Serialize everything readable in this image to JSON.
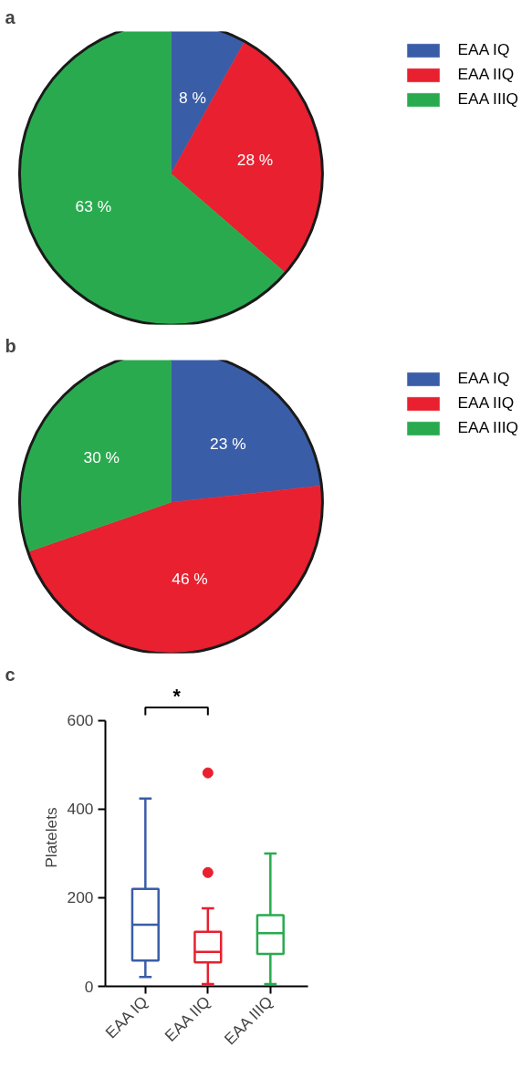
{
  "chart_data": [
    {
      "type": "pie",
      "title": "a",
      "categories": [
        "EAA IQ",
        "EAA IIQ",
        "EAA IIIQ"
      ],
      "values": [
        8,
        28,
        63
      ],
      "colors": [
        "#3a5da8",
        "#e8202f",
        "#2aaa4f"
      ],
      "value_labels": [
        "8 %",
        "28 %",
        "63 %"
      ],
      "legend": "top right"
    },
    {
      "type": "pie",
      "title": "b",
      "categories": [
        "EAA IQ",
        "EAA IIQ",
        "EAA IIIQ"
      ],
      "values": [
        23,
        46,
        30
      ],
      "colors": [
        "#3a5da8",
        "#e8202f",
        "#2aaa4f"
      ],
      "value_labels": [
        "23 %",
        "46 %",
        "30 %"
      ],
      "legend": "top right"
    },
    {
      "type": "box",
      "title": "c",
      "ylabel": "Platelets",
      "categories": [
        "EAA IQ",
        "EAA IIQ",
        "EAA IIIQ"
      ],
      "colors": [
        "#3a5da8",
        "#e8202f",
        "#2aaa4f"
      ],
      "ylim": [
        0,
        600
      ],
      "yticks": [
        0,
        200,
        400,
        600
      ],
      "grid": false,
      "annotations": [
        "*"
      ],
      "boxes": [
        {
          "low": 21,
          "q1": 58,
          "median": 139,
          "q3": 220,
          "high": 424
        },
        {
          "low": 5,
          "q1": 54,
          "median": 78,
          "q3": 123,
          "high": 176,
          "outliers": [
            482,
            257
          ]
        },
        {
          "low": 5,
          "q1": 73,
          "median": 120,
          "q3": 161,
          "high": 300
        }
      ]
    }
  ]
}
